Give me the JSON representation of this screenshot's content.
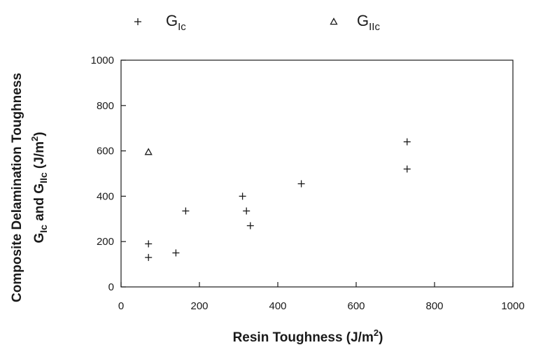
{
  "chart_data": {
    "type": "scatter",
    "xlabel": "Resin Toughness (J/m²)",
    "xlabel_parts": {
      "main": "Resin Toughness (J/m",
      "sup": "2",
      "end": ")"
    },
    "ylabel_line1": "Composite Delamination Toughness",
    "ylabel_line2": {
      "g": "G",
      "sub1": "Ic",
      "and": " and G",
      "sub2": "IIc",
      "unit": " (J/m",
      "sup": "2",
      "end": ")"
    },
    "xlim": [
      0,
      1000
    ],
    "ylim": [
      0,
      1000
    ],
    "x_ticks": [
      0,
      200,
      400,
      600,
      800,
      1000
    ],
    "y_ticks": [
      0,
      200,
      400,
      600,
      800,
      1000
    ],
    "x_tick_labels": [
      "0",
      "200",
      "400",
      "600",
      "800",
      "1000"
    ],
    "y_tick_labels": [
      "0",
      "200",
      "400",
      "600",
      "800",
      "1000"
    ],
    "grid": false,
    "legend_position": "top",
    "series": [
      {
        "name": "GIc",
        "label": {
          "main": "G",
          "sub": "Ic"
        },
        "marker": "plus",
        "points": [
          {
            "x": 70,
            "y": 190
          },
          {
            "x": 70,
            "y": 130
          },
          {
            "x": 140,
            "y": 150
          },
          {
            "x": 165,
            "y": 335
          },
          {
            "x": 310,
            "y": 400
          },
          {
            "x": 320,
            "y": 335
          },
          {
            "x": 330,
            "y": 270
          },
          {
            "x": 460,
            "y": 455
          },
          {
            "x": 730,
            "y": 640
          },
          {
            "x": 730,
            "y": 520
          }
        ]
      },
      {
        "name": "GIIc",
        "label": {
          "main": "G",
          "sub": "IIc"
        },
        "marker": "triangle",
        "points": [
          {
            "x": 70,
            "y": 595
          }
        ]
      }
    ]
  },
  "colors": {
    "ink": "#1a1a1a",
    "background": "#ffffff"
  }
}
